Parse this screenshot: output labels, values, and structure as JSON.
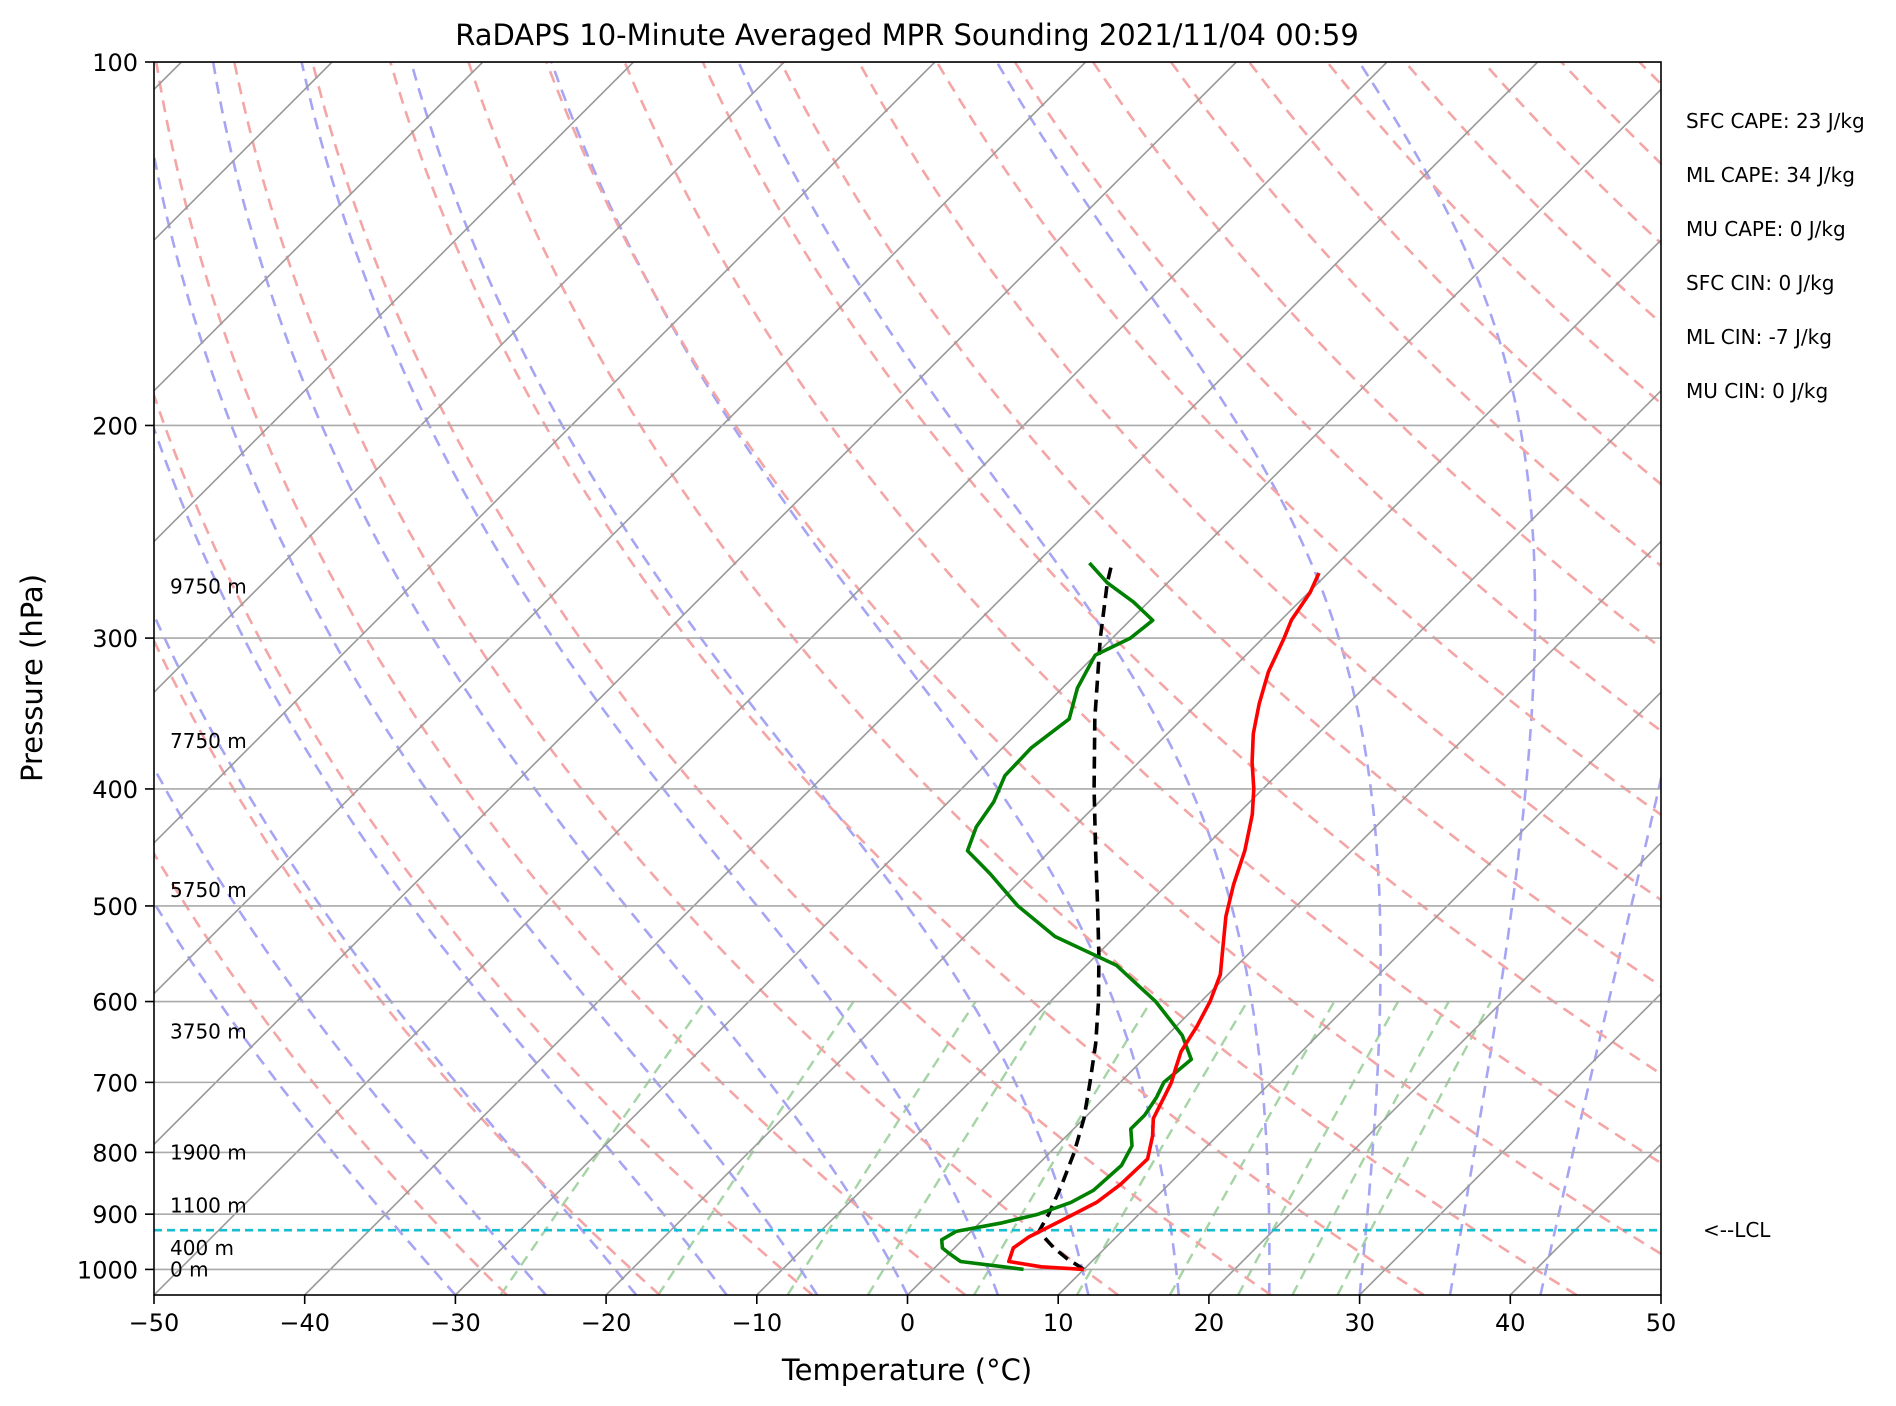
{
  "chart_data": {
    "type": "line",
    "title": "RaDAPS 10-Minute Averaged MPR Sounding 2021/11/04 00:59",
    "xlabel": "Temperature (°C)",
    "ylabel": "Pressure (hPa)",
    "xlim": [
      -50,
      50
    ],
    "ylim": [
      1050,
      100
    ],
    "y_scale": "log",
    "skew": 45,
    "x_ticks": [
      -50,
      -40,
      -30,
      -20,
      -10,
      0,
      10,
      20,
      30,
      40,
      50
    ],
    "x_tick_labels": [
      "−50",
      "−40",
      "−30",
      "−20",
      "−10",
      "0",
      "10",
      "20",
      "30",
      "40",
      "50"
    ],
    "y_ticks": [
      100,
      200,
      300,
      400,
      500,
      600,
      700,
      800,
      900,
      1000
    ],
    "y_tick_labels": [
      "100",
      "200",
      "300",
      "400",
      "500",
      "600",
      "700",
      "800",
      "900",
      "1000"
    ],
    "grid": true,
    "legend": "none",
    "colors": {
      "temperature": "#ff0000",
      "dewpoint": "#008000",
      "parcel": "#000000",
      "lcl": "#17becf",
      "dry_adiabat": "#f4a5a5",
      "moist_adiabat": "#a5a5f4",
      "mixing_ratio": "#a5d4a5",
      "isotherm": "#999999"
    },
    "series": [
      {
        "role": "temperature",
        "points": [
          [
            1000,
            10.0
          ],
          [
            995,
            7.0
          ],
          [
            985,
            4.5
          ],
          [
            960,
            3.9
          ],
          [
            940,
            4.2
          ],
          [
            910,
            5.3
          ],
          [
            880,
            6.4
          ],
          [
            850,
            6.8
          ],
          [
            810,
            6.9
          ],
          [
            775,
            5.7
          ],
          [
            750,
            4.6
          ],
          [
            720,
            3.9
          ],
          [
            700,
            3.4
          ],
          [
            680,
            2.7
          ],
          [
            660,
            2.0
          ],
          [
            630,
            1.4
          ],
          [
            600,
            0.6
          ],
          [
            570,
            -0.5
          ],
          [
            540,
            -2.2
          ],
          [
            510,
            -4.0
          ],
          [
            480,
            -5.6
          ],
          [
            450,
            -7.1
          ],
          [
            420,
            -9.0
          ],
          [
            400,
            -10.6
          ],
          [
            380,
            -12.5
          ],
          [
            360,
            -14.3
          ],
          [
            340,
            -15.9
          ],
          [
            320,
            -17.4
          ],
          [
            300,
            -18.6
          ],
          [
            290,
            -19.3
          ],
          [
            275,
            -19.9
          ],
          [
            265,
            -20.6
          ]
        ]
      },
      {
        "role": "dewpoint",
        "points": [
          [
            1000,
            6.0
          ],
          [
            995,
            4.5
          ],
          [
            985,
            1.3
          ],
          [
            970,
            0.0
          ],
          [
            960,
            -0.8
          ],
          [
            945,
            -1.4
          ],
          [
            930,
            -1.0
          ],
          [
            915,
            1.5
          ],
          [
            900,
            3.3
          ],
          [
            880,
            4.7
          ],
          [
            860,
            5.4
          ],
          [
            820,
            5.6
          ],
          [
            790,
            5.0
          ],
          [
            765,
            3.8
          ],
          [
            745,
            3.8
          ],
          [
            720,
            3.4
          ],
          [
            700,
            2.9
          ],
          [
            670,
            3.2
          ],
          [
            640,
            1.0
          ],
          [
            600,
            -3.0
          ],
          [
            560,
            -8.0
          ],
          [
            530,
            -14.0
          ],
          [
            500,
            -18.5
          ],
          [
            470,
            -22.5
          ],
          [
            450,
            -25.5
          ],
          [
            430,
            -26.5
          ],
          [
            410,
            -27.0
          ],
          [
            390,
            -28.0
          ],
          [
            370,
            -28.1
          ],
          [
            350,
            -27.5
          ],
          [
            330,
            -29.0
          ],
          [
            310,
            -30.0
          ],
          [
            300,
            -28.8
          ],
          [
            290,
            -28.5
          ],
          [
            280,
            -31.0
          ],
          [
            270,
            -34.0
          ],
          [
            260,
            -36.5
          ]
        ]
      },
      {
        "role": "parcel",
        "points": [
          [
            1000,
            10.0
          ],
          [
            980,
            8.2
          ],
          [
            960,
            6.6
          ],
          [
            950,
            5.9
          ],
          [
            930,
            4.5
          ],
          [
            900,
            4.0
          ],
          [
            850,
            2.9
          ],
          [
            800,
            1.6
          ],
          [
            750,
            0.0
          ],
          [
            700,
            -2.0
          ],
          [
            650,
            -4.2
          ],
          [
            600,
            -6.8
          ],
          [
            550,
            -9.8
          ],
          [
            500,
            -13.2
          ],
          [
            450,
            -17.0
          ],
          [
            400,
            -21.2
          ],
          [
            350,
            -25.8
          ],
          [
            300,
            -30.8
          ],
          [
            270,
            -34.0
          ],
          [
            260,
            -35.0
          ]
        ]
      }
    ],
    "lcl_pressure": 928,
    "lcl_label": "<--LCL",
    "height_labels": [
      {
        "pressure": 1000,
        "text": "0 m"
      },
      {
        "pressure": 960,
        "text": "400 m"
      },
      {
        "pressure": 885,
        "text": "1100 m"
      },
      {
        "pressure": 800,
        "text": "1900 m"
      },
      {
        "pressure": 635,
        "text": "3750 m"
      },
      {
        "pressure": 485,
        "text": "5750 m"
      },
      {
        "pressure": 365,
        "text": "7750 m"
      },
      {
        "pressure": 272,
        "text": "9750 m"
      }
    ],
    "indices": [
      "SFC CAPE: 23 J/kg",
      "ML CAPE: 34 J/kg",
      "MU CAPE: 0 J/kg",
      "SFC CIN: 0 J/kg",
      "ML CIN: -7 J/kg",
      "MU CIN: 0 J/kg"
    ]
  }
}
